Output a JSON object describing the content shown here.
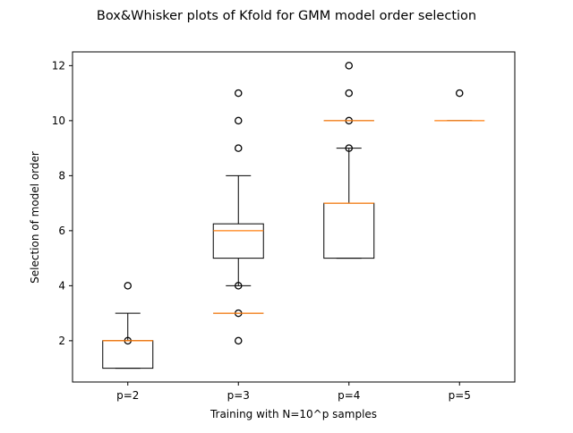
{
  "chart_data": {
    "type": "boxplot",
    "title": "Box&Whisker plots of Kfold for GMM model order selection",
    "xlabel": "Training with N=10^p samples",
    "ylabel": "Selection of model order",
    "categories": [
      "p=2",
      "p=3",
      "p=4",
      "p=5"
    ],
    "ylim": [
      0.5,
      12.5
    ],
    "yticks": [
      2,
      4,
      6,
      8,
      10,
      12
    ],
    "grid": false,
    "colors": {
      "box": "#000000",
      "median": "#ff7f0e",
      "flier": "#000000",
      "axes": "#000000"
    },
    "boxes": [
      {
        "category": "p=2",
        "whisker_low": 1,
        "q1": 1,
        "median": 2,
        "q3": 2,
        "whisker_high": 3,
        "fliers": [
          2,
          4
        ]
      },
      {
        "category": "p=3",
        "whisker_low": 4,
        "q1": 5,
        "median": 6,
        "q3": 6.25,
        "whisker_high": 8,
        "fliers": [
          2,
          3,
          4,
          9,
          10,
          11
        ]
      },
      {
        "category": "p=4",
        "whisker_low": 5,
        "q1": 5,
        "median": 7,
        "q3": 7,
        "whisker_high": 9,
        "fliers": [
          9,
          10,
          11,
          12
        ]
      },
      {
        "category": "p=5",
        "whisker_low": 10,
        "q1": 10,
        "median": 10,
        "q3": 10,
        "whisker_high": 10,
        "fliers": [
          11
        ]
      }
    ],
    "extra_medians": [
      {
        "category": "p=2",
        "value": 2
      },
      {
        "category": "p=3",
        "value": 3
      },
      {
        "category": "p=4",
        "value": 10
      }
    ]
  }
}
